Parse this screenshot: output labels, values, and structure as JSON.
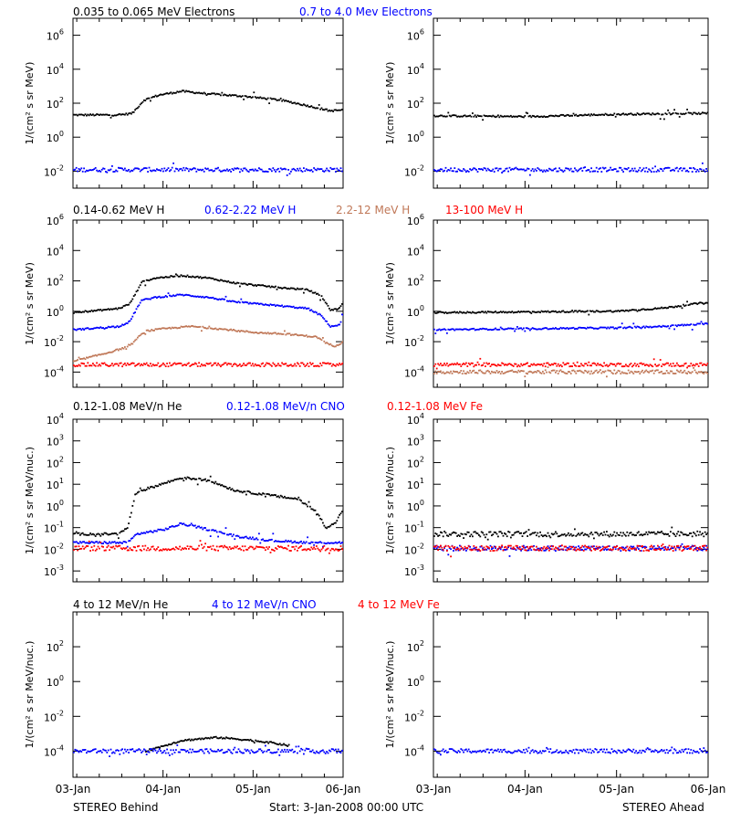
{
  "footer": {
    "left": "STEREO Behind",
    "center": "Start:  3-Jan-2008 00:00 UTC",
    "right": "STEREO Ahead"
  },
  "colors": {
    "black": "#000000",
    "blue": "#0000ff",
    "tan": "#c07858",
    "red": "#ff0000"
  },
  "x_ticks": [
    "03-Jan",
    "04-Jan",
    "05-Jan",
    "06-Jan"
  ],
  "chart_data": [
    {
      "type": "scatter",
      "panel": "electrons",
      "spacecraft": "STEREO Behind",
      "legend": [
        {
          "label": "0.035 to 0.065 MeV Electrons",
          "color": "#000000"
        },
        {
          "label": "0.7 to 4.0 Mev Electrons",
          "color": "#0000ff"
        }
      ],
      "ylabel": "1/(cm² s sr MeV)",
      "yscale": "log",
      "ylim_log10": [
        -3,
        7
      ],
      "yticks_exp": [
        "-2",
        "0",
        "2",
        "4",
        "6"
      ],
      "xlim_days": [
        0,
        3
      ],
      "series": [
        {
          "color": "#000000",
          "x": [
            0,
            0.5,
            0.65,
            0.78,
            0.95,
            1.2,
            1.5,
            1.9,
            2.3,
            2.6,
            2.85,
            3.0
          ],
          "y": [
            20,
            20,
            25,
            150,
            300,
            500,
            350,
            250,
            150,
            70,
            35,
            40
          ]
        },
        {
          "color": "#0000ff",
          "x": [
            0,
            3.0
          ],
          "y": [
            0.012,
            0.012
          ]
        }
      ]
    },
    {
      "type": "scatter",
      "panel": "electrons",
      "spacecraft": "STEREO Ahead",
      "ylabel": "1/(cm² s sr MeV)",
      "yscale": "log",
      "ylim_log10": [
        -3,
        7
      ],
      "yticks_exp": [
        "-2",
        "0",
        "2",
        "4",
        "6"
      ],
      "xlim_days": [
        0,
        3
      ],
      "series": [
        {
          "color": "#000000",
          "x": [
            0,
            1.0,
            2.0,
            3.0
          ],
          "y": [
            18,
            16,
            22,
            25
          ]
        },
        {
          "color": "#0000ff",
          "x": [
            0,
            3.0
          ],
          "y": [
            0.012,
            0.012
          ]
        }
      ]
    },
    {
      "type": "scatter",
      "panel": "protons",
      "spacecraft": "STEREO Behind",
      "legend": [
        {
          "label": "0.14-0.62 MeV H",
          "color": "#000000"
        },
        {
          "label": "0.62-2.22 MeV H",
          "color": "#0000ff"
        },
        {
          "label": "2.2-12 MeV H",
          "color": "#c07858"
        },
        {
          "label": "13-100 MeV H",
          "color": "#ff0000"
        }
      ],
      "ylabel": "1/(cm² s sr MeV)",
      "yscale": "log",
      "ylim_log10": [
        -5,
        6
      ],
      "yticks_exp": [
        "-4",
        "-2",
        "0",
        "2",
        "4",
        "6"
      ],
      "xlim_days": [
        0,
        3
      ],
      "series": [
        {
          "color": "#000000",
          "x": [
            0,
            0.5,
            0.62,
            0.7,
            0.75,
            0.9,
            1.2,
            1.5,
            1.8,
            2.2,
            2.6,
            2.75,
            2.85,
            2.95,
            3.0
          ],
          "y": [
            0.8,
            1.5,
            3,
            20,
            80,
            150,
            220,
            150,
            70,
            40,
            25,
            10,
            1.2,
            1.5,
            5
          ]
        },
        {
          "color": "#0000ff",
          "x": [
            0,
            0.5,
            0.62,
            0.7,
            0.75,
            0.9,
            1.2,
            1.5,
            1.8,
            2.2,
            2.6,
            2.75,
            2.85,
            2.95,
            3.0
          ],
          "y": [
            0.06,
            0.1,
            0.2,
            1.5,
            5,
            8,
            12,
            8,
            4,
            2.5,
            1.5,
            0.5,
            0.1,
            0.12,
            0.6
          ]
        },
        {
          "color": "#c07858",
          "x": [
            0,
            0.4,
            0.62,
            0.72,
            0.8,
            1.0,
            1.3,
            1.6,
            2.0,
            2.4,
            2.7,
            2.8,
            2.9,
            3.0
          ],
          "y": [
            0.0005,
            0.002,
            0.005,
            0.02,
            0.05,
            0.07,
            0.1,
            0.07,
            0.04,
            0.03,
            0.02,
            0.008,
            0.005,
            0.01
          ]
        },
        {
          "color": "#ff0000",
          "x": [
            0,
            3.0
          ],
          "y": [
            0.0003,
            0.0003
          ]
        }
      ]
    },
    {
      "type": "scatter",
      "panel": "protons",
      "spacecraft": "STEREO Ahead",
      "ylabel": "1/(cm² s sr MeV)",
      "yscale": "log",
      "ylim_log10": [
        -5,
        6
      ],
      "yticks_exp": [
        "-4",
        "-2",
        "0",
        "2",
        "4",
        "6"
      ],
      "xlim_days": [
        0,
        3
      ],
      "series": [
        {
          "color": "#000000",
          "x": [
            0,
            1.0,
            2.0,
            2.5,
            3.0
          ],
          "y": [
            0.8,
            0.9,
            1.0,
            1.6,
            4
          ]
        },
        {
          "color": "#0000ff",
          "x": [
            0,
            1.0,
            2.0,
            2.5,
            3.0
          ],
          "y": [
            0.06,
            0.07,
            0.08,
            0.1,
            0.15
          ]
        },
        {
          "color": "#c07858",
          "x": [
            0,
            3.0
          ],
          "y": [
            0.0001,
            0.0001
          ]
        },
        {
          "color": "#ff0000",
          "x": [
            0,
            3.0
          ],
          "y": [
            0.0003,
            0.0003
          ]
        }
      ]
    },
    {
      "type": "scatter",
      "panel": "heavy-ions-low",
      "spacecraft": "STEREO Behind",
      "legend": [
        {
          "label": "0.12-1.08 MeV/n He",
          "color": "#000000"
        },
        {
          "label": "0.12-1.08 MeV/n CNO",
          "color": "#0000ff"
        },
        {
          "label": "0.12-1.08 MeV Fe",
          "color": "#ff0000"
        }
      ],
      "ylabel": "1/(cm² s sr MeV/nuc.)",
      "yscale": "log",
      "ylim_log10": [
        -3.5,
        4
      ],
      "yticks_exp": [
        "-3",
        "-2",
        "-1",
        "0",
        "1",
        "2",
        "3",
        "4"
      ],
      "xlim_days": [
        0,
        3
      ],
      "series": [
        {
          "color": "#000000",
          "x": [
            0,
            0.5,
            0.6,
            0.68,
            0.75,
            0.9,
            1.2,
            1.5,
            1.8,
            2.2,
            2.5,
            2.7,
            2.8,
            2.9,
            3.0
          ],
          "y": [
            0.05,
            0.05,
            0.1,
            3,
            5,
            8,
            20,
            15,
            5,
            3,
            2,
            0.5,
            0.1,
            0.15,
            0.8
          ]
        },
        {
          "color": "#0000ff",
          "x": [
            0,
            0.6,
            0.7,
            1.0,
            1.2,
            1.5,
            1.8,
            2.2,
            2.6,
            3.0
          ],
          "y": [
            0.02,
            0.02,
            0.05,
            0.08,
            0.15,
            0.08,
            0.04,
            0.025,
            0.02,
            0.02
          ]
        },
        {
          "color": "#ff0000",
          "x": [
            0,
            3.0
          ],
          "y": [
            0.011,
            0.011
          ]
        }
      ]
    },
    {
      "type": "scatter",
      "panel": "heavy-ions-low",
      "spacecraft": "STEREO Ahead",
      "ylabel": "1/(cm² s sr MeV/nuc.)",
      "yscale": "log",
      "ylim_log10": [
        -3.5,
        4
      ],
      "yticks_exp": [
        "-3",
        "-2",
        "-1",
        "0",
        "1",
        "2",
        "3",
        "4"
      ],
      "xlim_days": [
        0,
        3
      ],
      "series": [
        {
          "color": "#000000",
          "x": [
            0,
            3.0
          ],
          "y": [
            0.05,
            0.05
          ]
        },
        {
          "color": "#0000ff",
          "x": [
            0,
            3.0
          ],
          "y": [
            0.011,
            0.011
          ]
        },
        {
          "color": "#ff0000",
          "x": [
            0,
            3.0
          ],
          "y": [
            0.011,
            0.011
          ]
        }
      ]
    },
    {
      "type": "scatter",
      "panel": "heavy-ions-high",
      "spacecraft": "STEREO Behind",
      "legend": [
        {
          "label": "4 to 12 MeV/n He",
          "color": "#000000"
        },
        {
          "label": "4 to 12 MeV/n CNO",
          "color": "#0000ff"
        },
        {
          "label": "4 to 12 MeV Fe",
          "color": "#ff0000"
        }
      ],
      "ylabel": "1/(cm² s sr MeV/nuc.)",
      "yscale": "log",
      "ylim_log10": [
        -5.5,
        4
      ],
      "yticks_exp": [
        "-4",
        "-2",
        "0",
        "2"
      ],
      "xlim_days": [
        0,
        3
      ],
      "series": [
        {
          "color": "#000000",
          "x": [
            0.8,
            1.0,
            1.2,
            1.4,
            1.6,
            1.8,
            2.0,
            2.2,
            2.4
          ],
          "y": [
            0.0001,
            0.0002,
            0.0004,
            0.0005,
            0.0006,
            0.0005,
            0.0004,
            0.0003,
            0.0002
          ]
        },
        {
          "color": "#0000ff",
          "x": [
            0,
            3.0
          ],
          "y": [
            0.0001,
            0.0001
          ]
        }
      ]
    },
    {
      "type": "scatter",
      "panel": "heavy-ions-high",
      "spacecraft": "STEREO Ahead",
      "ylabel": "1/(cm² s sr MeV/nuc.)",
      "yscale": "log",
      "ylim_log10": [
        -5.5,
        4
      ],
      "yticks_exp": [
        "-4",
        "-2",
        "0",
        "2"
      ],
      "xlim_days": [
        0,
        3
      ],
      "series": [
        {
          "color": "#0000ff",
          "x": [
            0,
            3.0
          ],
          "y": [
            0.0001,
            0.0001
          ]
        }
      ]
    }
  ]
}
